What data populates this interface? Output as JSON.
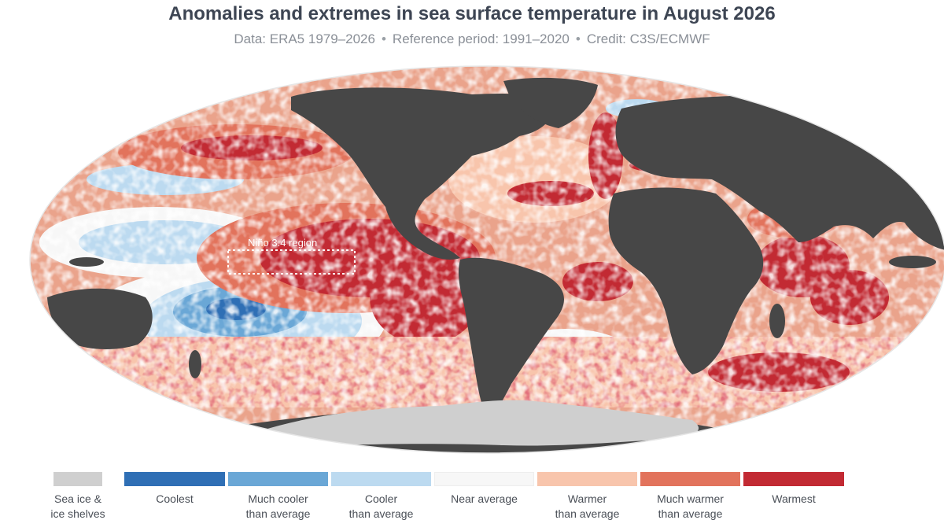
{
  "title": "Anomalies and extremes in sea surface temperature in August 2026",
  "subtitle": {
    "data": "Data: ERA5 1979–2026",
    "reference": "Reference period: 1991–2020",
    "credit": "Credit: C3S/ECMWF",
    "separator": "•"
  },
  "map": {
    "region_label": "Niño 3.4 region",
    "colors": {
      "land": "#474747",
      "sea_ice": "#cfcfcf",
      "coolest": "#2f6fb5",
      "much_cooler": "#6aa7d6",
      "cooler": "#bcdaf0",
      "near_average": "#f7f7f7",
      "warmer": "#f8c5ac",
      "much_warmer": "#e2735c",
      "warmest": "#c22a33"
    }
  },
  "legend": [
    {
      "key": "sea_ice",
      "color": "#cfcfcf",
      "line1": "Sea ice &",
      "line2": "ice shelves"
    },
    {
      "key": "coolest",
      "color": "#2f6fb5",
      "line1": "Coolest",
      "line2": ""
    },
    {
      "key": "much_cooler",
      "color": "#6aa7d6",
      "line1": "Much cooler",
      "line2": "than average"
    },
    {
      "key": "cooler",
      "color": "#bcdaf0",
      "line1": "Cooler",
      "line2": "than average"
    },
    {
      "key": "near_average",
      "color": "#f7f7f7",
      "line1": "Near average",
      "line2": ""
    },
    {
      "key": "warmer",
      "color": "#f8c5ac",
      "line1": "Warmer",
      "line2": "than average"
    },
    {
      "key": "much_warmer",
      "color": "#e2735c",
      "line1": "Much warmer",
      "line2": "than average"
    },
    {
      "key": "warmest",
      "color": "#c22a33",
      "line1": "Warmest",
      "line2": ""
    }
  ]
}
